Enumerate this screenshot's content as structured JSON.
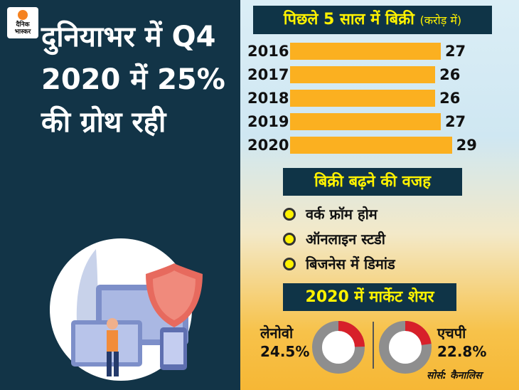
{
  "logo": "दैनिक भास्कर",
  "headline": "दुनियाभर में Q4 2020 में 25% की ग्रोथ रही",
  "chart_data": [
    {
      "type": "bar",
      "orientation": "horizontal",
      "title": "पिछले 5 साल में बिक्री",
      "unit": "(करोड़ में)",
      "categories": [
        "2016",
        "2017",
        "2018",
        "2019",
        "2020"
      ],
      "values": [
        27,
        26,
        26,
        27,
        29
      ],
      "color": "#fbb020"
    },
    {
      "type": "pie",
      "style": "donut",
      "title": "2020 में मार्केट शेयर",
      "series": [
        {
          "name": "लेनोवो",
          "value": 24.5,
          "label": "24.5%"
        },
        {
          "name": "एचपी",
          "value": 22.8,
          "label": "22.8%"
        }
      ],
      "colors": {
        "share": "#d7202a",
        "rest": "#8e8e8e"
      }
    }
  ],
  "reasons": {
    "title": "बिक्री बढ़ने की वजह",
    "items": [
      "वर्क फ्रॉम होम",
      "ऑनलाइन स्टडी",
      "बिजनेस में डिमांड"
    ]
  },
  "source": "सोर्स: कैनालिस"
}
